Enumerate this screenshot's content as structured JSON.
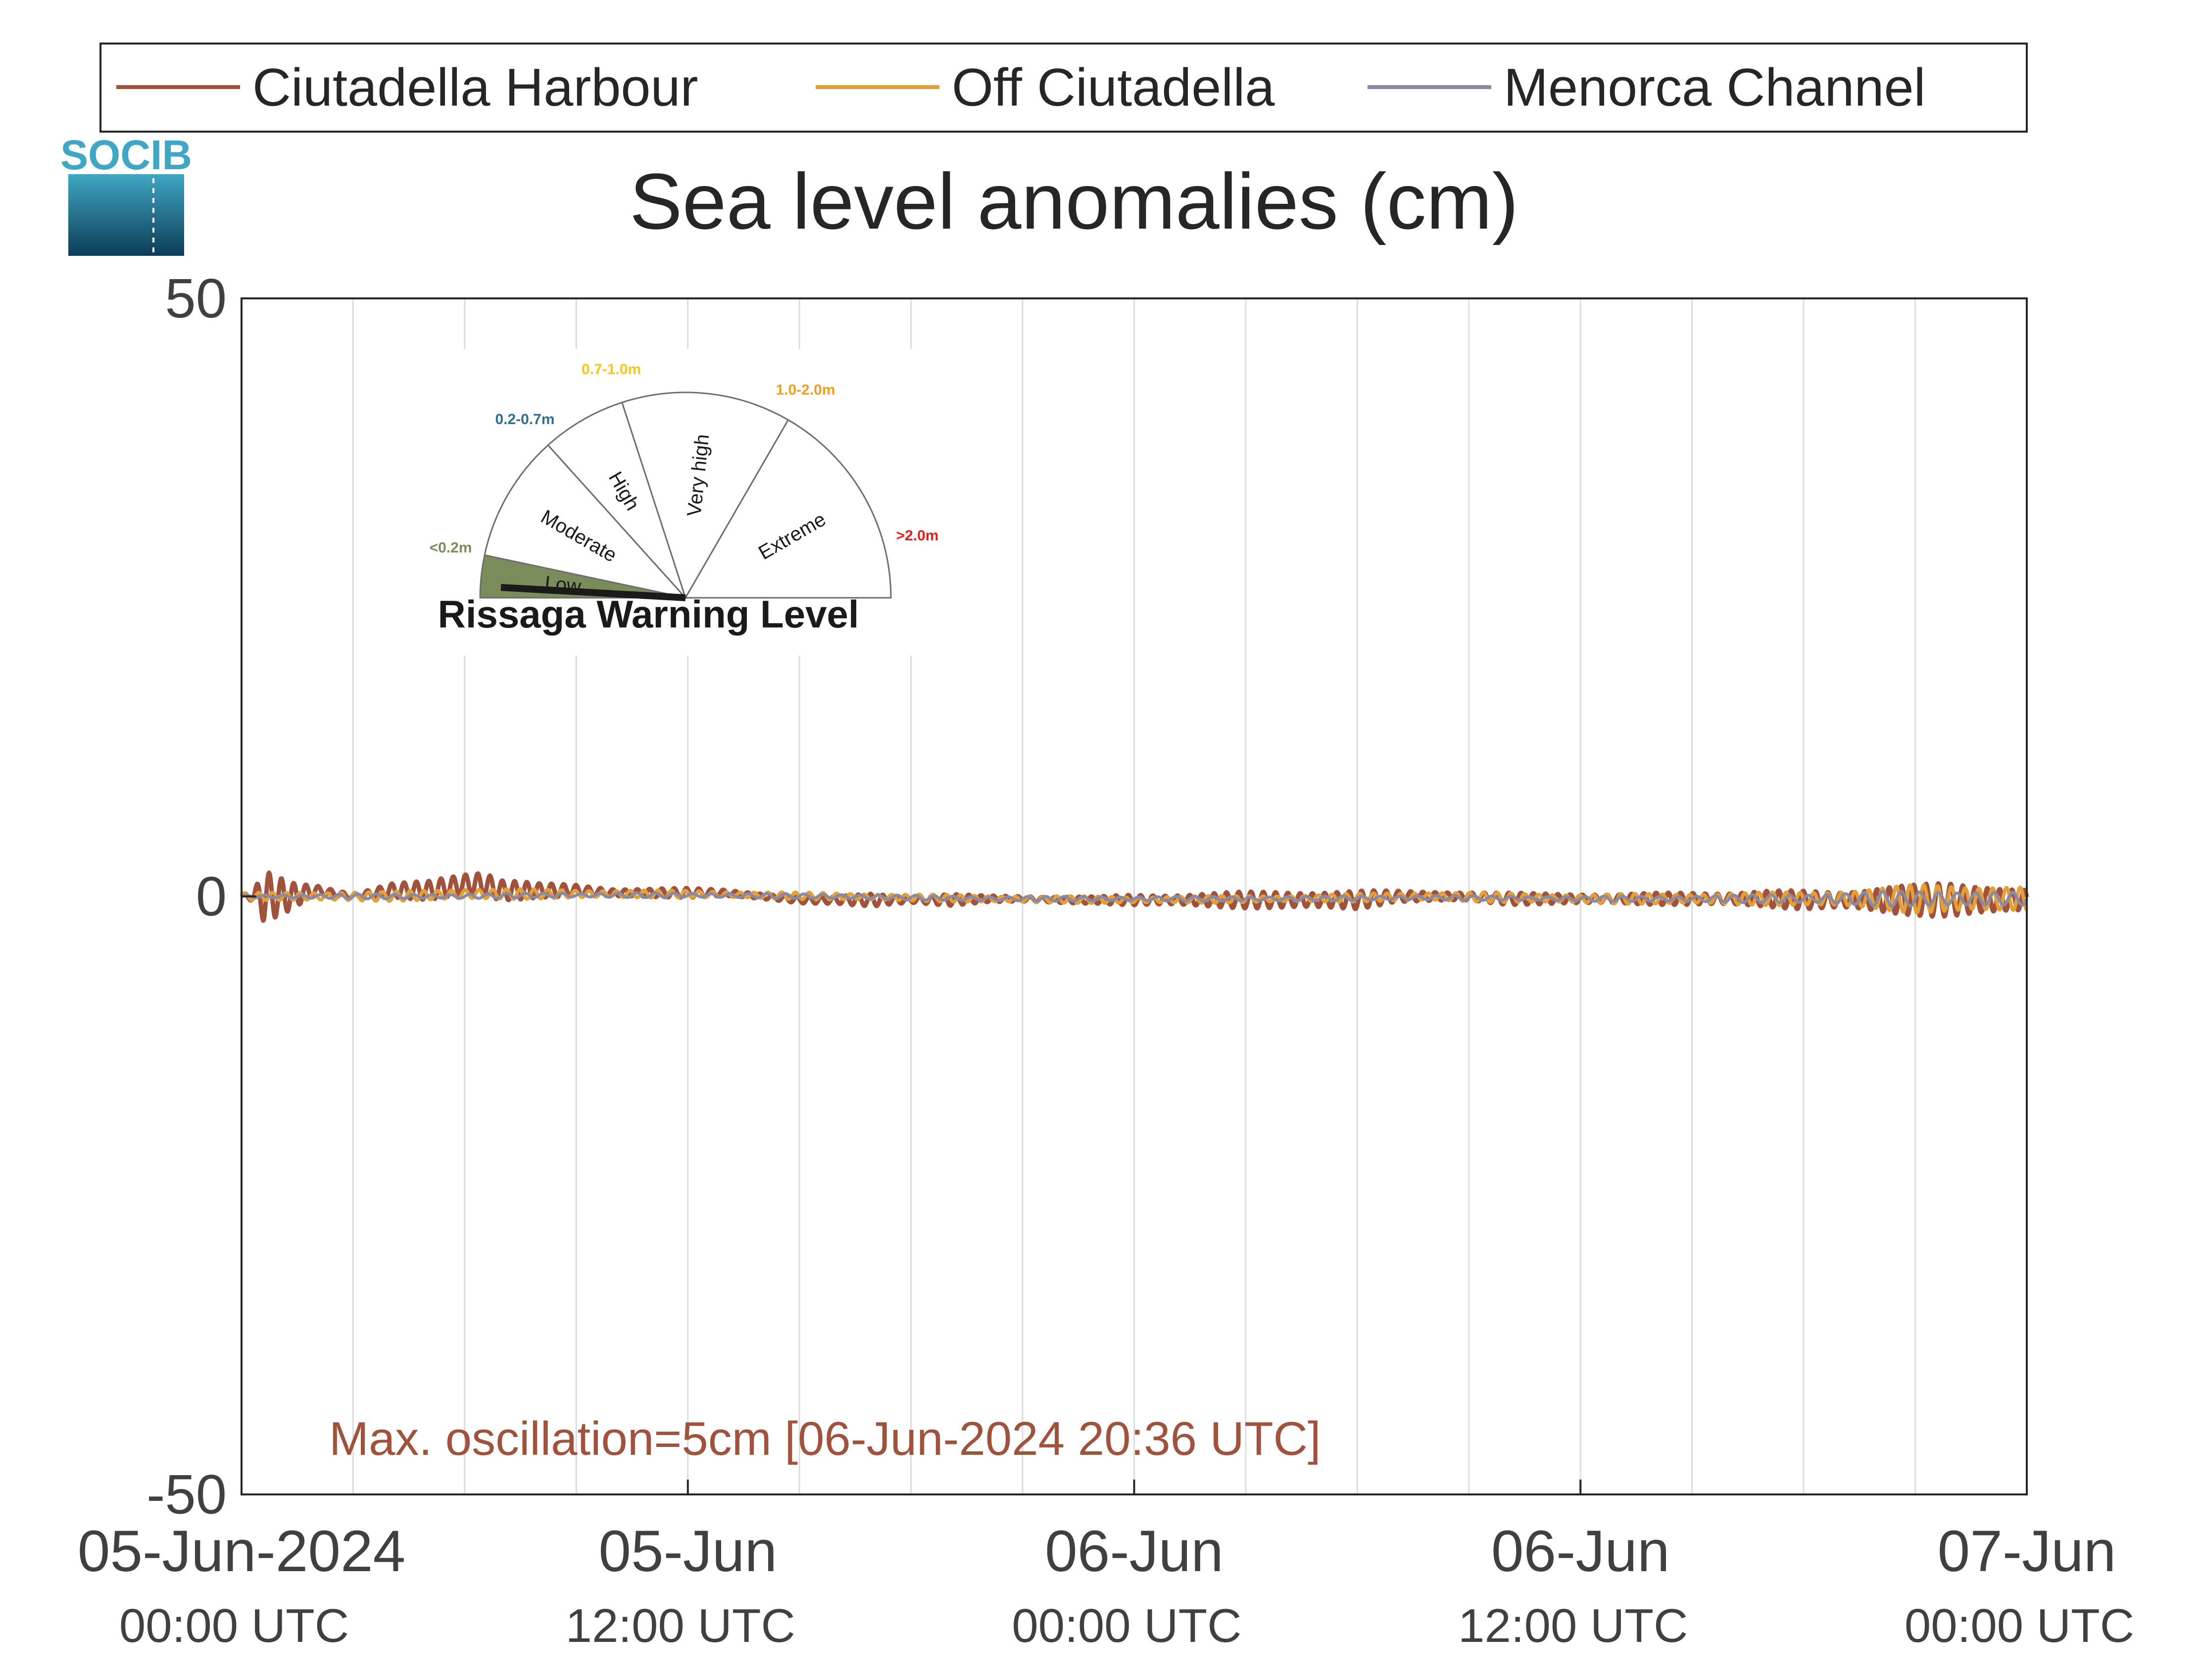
{
  "chart_data": {
    "type": "line",
    "title": "Sea level anomalies (cm)",
    "xlabel": "",
    "ylabel": "",
    "ylim": [
      -50,
      50
    ],
    "xlim_hours": [
      0,
      48
    ],
    "yticks": [
      50,
      0,
      -50
    ],
    "ytick_labels": [
      "50",
      "0",
      "-50"
    ],
    "xticks": [
      {
        "hour": 0,
        "date": "05-Jun-2024",
        "time": "00:00 UTC"
      },
      {
        "hour": 12,
        "date": "05-Jun",
        "time": "12:00 UTC"
      },
      {
        "hour": 24,
        "date": "06-Jun",
        "time": "00:00 UTC"
      },
      {
        "hour": 36,
        "date": "06-Jun",
        "time": "12:00 UTC"
      },
      {
        "hour": 48,
        "date": "07-Jun",
        "time": "00:00 UTC"
      }
    ],
    "grid": "vertical lines every 3 hours",
    "legend_position": "top",
    "series": [
      {
        "name": "Ciutadella Harbour",
        "color": "#a0523d",
        "envelope": {
          "hour": [
            0,
            0.3,
            0.6,
            1.3,
            2,
            3,
            4,
            5,
            6,
            6.5,
            7,
            8,
            9,
            10,
            11,
            12,
            13,
            14,
            15,
            16,
            17,
            18,
            19,
            20,
            21,
            22,
            23,
            24,
            25,
            26,
            27,
            28,
            29,
            30,
            31,
            32,
            33,
            34,
            35,
            36,
            37,
            38,
            39,
            40,
            41,
            42,
            43,
            44,
            44.5,
            45,
            46,
            47,
            48
          ],
          "center": [
            0,
            0,
            0,
            0,
            0.5,
            0,
            0.5,
            0.5,
            1,
            1,
            0.5,
            0.5,
            0.5,
            0.3,
            0.3,
            0.3,
            0.3,
            0,
            -0.3,
            -0.3,
            -0.3,
            -0.3,
            -0.3,
            -0.2,
            -0.2,
            -0.3,
            -0.3,
            -0.3,
            -0.3,
            -0.3,
            -0.3,
            -0.3,
            -0.3,
            -0.3,
            0,
            0,
            0,
            -0.2,
            -0.2,
            -0.2,
            -0.2,
            -0.2,
            -0.2,
            -0.2,
            -0.2,
            -0.3,
            -0.3,
            -0.3,
            -0.3,
            -0.3,
            -0.3,
            -0.3,
            -0.3
          ],
          "amplitude": [
            0.2,
            0.4,
            2.2,
            1.2,
            0.5,
            0.3,
            0.6,
            0.8,
            1.1,
            1.4,
            1.1,
            0.6,
            0.5,
            0.4,
            0.4,
            0.4,
            0.3,
            0.3,
            0.3,
            0.3,
            0.7,
            0.3,
            0.5,
            0.3,
            0.3,
            0.3,
            0.3,
            0.5,
            0.5,
            0.6,
            0.7,
            0.8,
            0.8,
            0.8,
            0.5,
            0.5,
            0.4,
            0.5,
            0.5,
            0.5,
            0.4,
            0.5,
            0.6,
            0.6,
            0.7,
            0.8,
            0.8,
            1.2,
            1.3,
            1.3,
            1.5,
            1.4,
            1.0
          ]
        }
      },
      {
        "name": "Off Ciutadella",
        "color": "#e3a03a",
        "envelope": {
          "hour": [
            0,
            2,
            4,
            6,
            8,
            12,
            16,
            20,
            24,
            28,
            32,
            36,
            40,
            42,
            44,
            45,
            46,
            47,
            48
          ],
          "center": [
            0,
            0,
            0,
            0.2,
            0.2,
            0.2,
            0,
            -0.2,
            -0.3,
            -0.2,
            0,
            -0.2,
            -0.2,
            -0.2,
            -0.2,
            -0.2,
            -0.2,
            -0.2,
            -0.2
          ],
          "amplitude": [
            0.3,
            0.4,
            0.4,
            0.5,
            0.4,
            0.3,
            0.3,
            0.3,
            0.3,
            0.3,
            0.4,
            0.4,
            0.5,
            0.6,
            0.9,
            1.2,
            1.3,
            1.2,
            1.0
          ]
        }
      },
      {
        "name": "Menorca Channel",
        "color": "#8a8aa3",
        "envelope": {
          "hour": [
            0,
            2,
            4,
            6,
            8,
            12,
            16,
            20,
            24,
            28,
            32,
            36,
            40,
            42,
            44,
            45,
            46,
            47,
            48
          ],
          "center": [
            0,
            0,
            0,
            0,
            0.1,
            0.1,
            0,
            -0.2,
            -0.2,
            -0.2,
            -0.1,
            -0.2,
            -0.2,
            -0.2,
            -0.2,
            -0.2,
            -0.2,
            -0.2,
            -0.2
          ],
          "amplitude": [
            0.1,
            0.2,
            0.2,
            0.2,
            0.2,
            0.2,
            0.2,
            0.2,
            0.2,
            0.2,
            0.2,
            0.2,
            0.3,
            0.4,
            0.6,
            0.7,
            0.7,
            0.6,
            0.5
          ]
        }
      }
    ],
    "annotation": {
      "text": "Max. oscillation=5cm [06-Jun-2024 20:36 UTC]",
      "color": "#a0523d"
    }
  },
  "logo": {
    "text": "SOCIB",
    "color_top": "#3fa7c3",
    "color_bottom": "#0d3c56"
  },
  "gauge": {
    "title": "Rissaga Warning Level",
    "current_level": "Low",
    "sectors": [
      {
        "name": "Low",
        "range": "<0.2m",
        "color": "#7a8c5a",
        "range_color": "#7a8c5a",
        "start_deg": 0,
        "end_deg": 12
      },
      {
        "name": "Moderate",
        "range": "0.2-0.7m",
        "color": "#ffffff",
        "range_color": "#2f6f8f",
        "start_deg": 12,
        "end_deg": 48
      },
      {
        "name": "High",
        "range": "0.7-1.0m",
        "color": "#ffffff",
        "range_color": "#f2c81b",
        "start_deg": 48,
        "end_deg": 72
      },
      {
        "name": "Very high",
        "range": "1.0-2.0m",
        "color": "#ffffff",
        "range_color": "#f0a020",
        "start_deg": 72,
        "end_deg": 120
      },
      {
        "name": "Extreme",
        "range": ">2.0m",
        "color": "#ffffff",
        "range_color": "#e02020",
        "start_deg": 120,
        "end_deg": 180
      }
    ]
  }
}
